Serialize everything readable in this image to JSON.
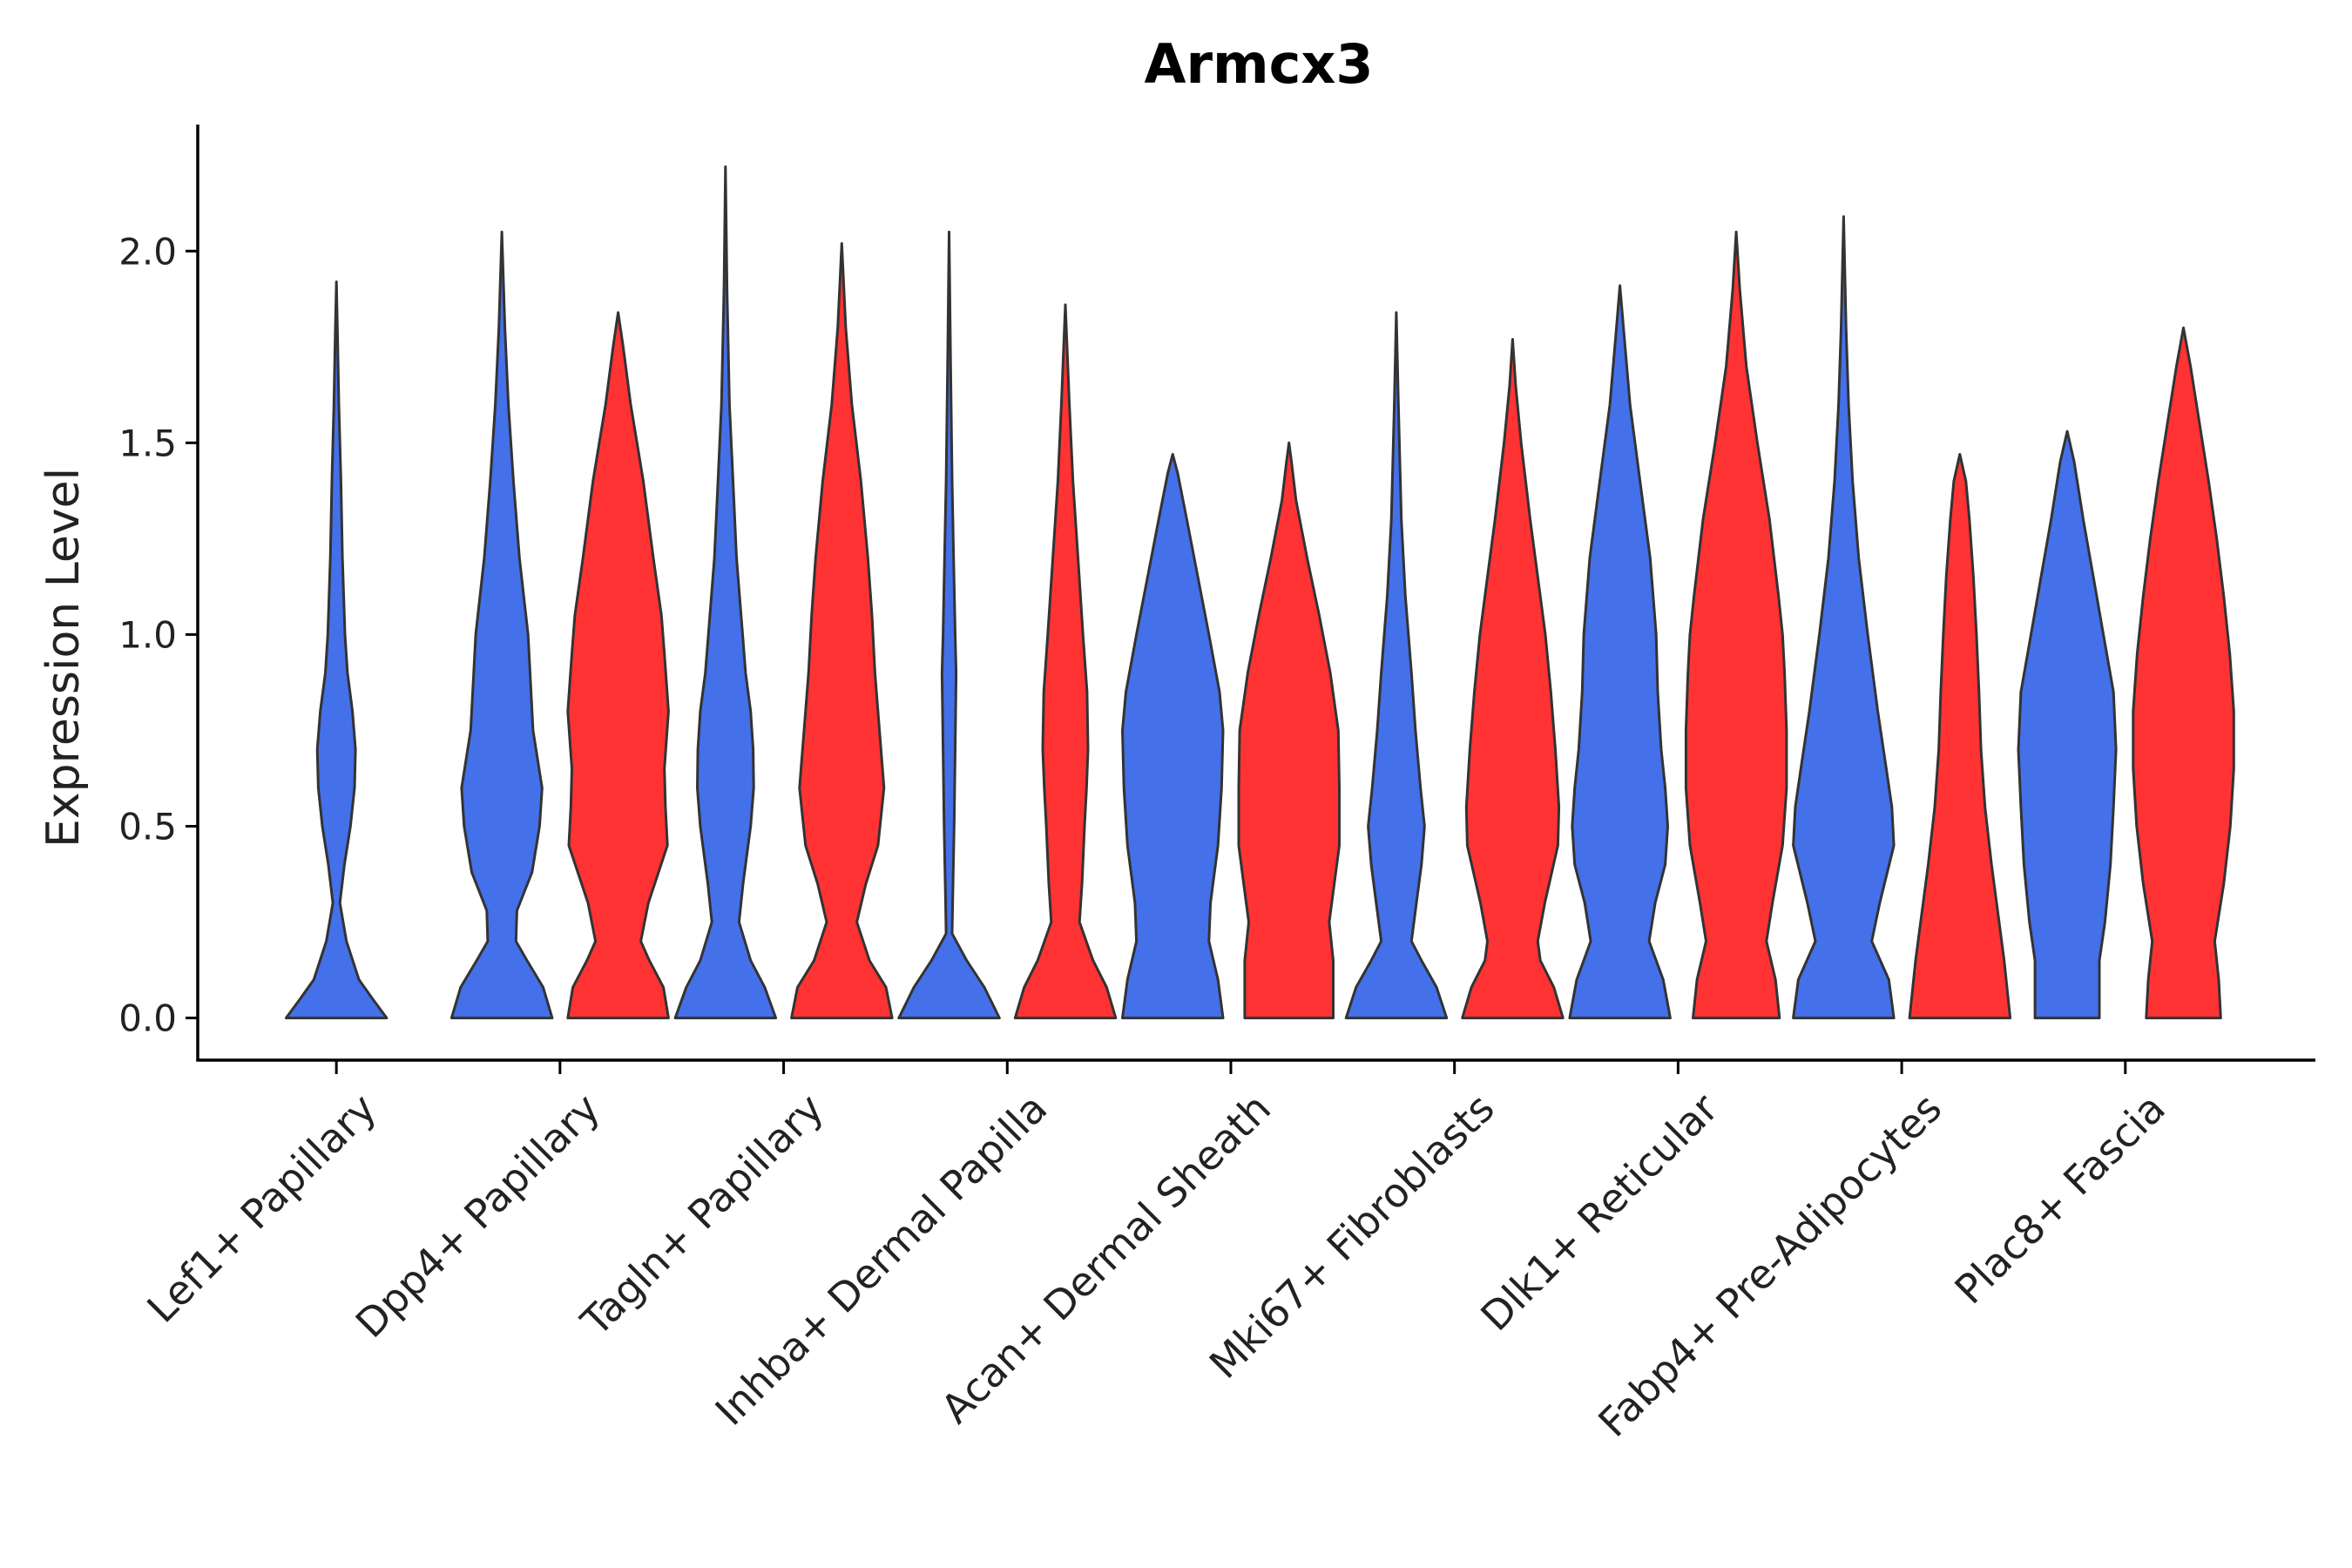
{
  "chart_data": {
    "type": "violin",
    "title": "Armcx3",
    "xlabel": "",
    "ylabel": "Expression Level",
    "ylim": [
      -0.11,
      2.33
    ],
    "yticks": [
      0.0,
      0.5,
      1.0,
      1.5,
      2.0
    ],
    "ytick_labels": [
      "0.0",
      "0.5",
      "1.0",
      "1.5",
      "2.0"
    ],
    "grid": false,
    "legend": "none",
    "colors": {
      "blue": "#4470EA",
      "red": "#FF3333",
      "outline": "#333333"
    },
    "categories": [
      "Lef1+ Papillary",
      "Dpp4+ Papillary",
      "Tagln+ Papillary",
      "Inhba+ Dermal Papilla",
      "Acan+ Dermal Sheath",
      "Mki67+ Fibroblasts",
      "Dlk1+ Reticular",
      "Fabp4+ Pre-Adipocytes",
      "Plac8+ Fascia"
    ],
    "violins": [
      {
        "category": 0,
        "color": "blue",
        "max": 1.92,
        "profile": [
          [
            0.0,
            1.0
          ],
          [
            0.05,
            0.72
          ],
          [
            0.1,
            0.45
          ],
          [
            0.2,
            0.2
          ],
          [
            0.3,
            0.07
          ],
          [
            0.4,
            0.16
          ],
          [
            0.5,
            0.28
          ],
          [
            0.6,
            0.36
          ],
          [
            0.7,
            0.38
          ],
          [
            0.8,
            0.32
          ],
          [
            0.9,
            0.22
          ],
          [
            1.0,
            0.17
          ],
          [
            1.2,
            0.12
          ],
          [
            1.4,
            0.09
          ],
          [
            1.6,
            0.05
          ],
          [
            1.8,
            0.02
          ],
          [
            1.92,
            0.0
          ]
        ]
      },
      {
        "category": 1,
        "color": "blue",
        "max": 2.05,
        "profile": [
          [
            0.0,
            1.0
          ],
          [
            0.08,
            0.82
          ],
          [
            0.15,
            0.5
          ],
          [
            0.2,
            0.28
          ],
          [
            0.28,
            0.3
          ],
          [
            0.38,
            0.6
          ],
          [
            0.5,
            0.75
          ],
          [
            0.6,
            0.8
          ],
          [
            0.75,
            0.62
          ],
          [
            0.9,
            0.56
          ],
          [
            1.0,
            0.52
          ],
          [
            1.2,
            0.35
          ],
          [
            1.4,
            0.23
          ],
          [
            1.6,
            0.13
          ],
          [
            1.8,
            0.06
          ],
          [
            2.05,
            0.0
          ]
        ]
      },
      {
        "category": 1,
        "color": "red",
        "max": 1.84,
        "profile": [
          [
            0.0,
            1.0
          ],
          [
            0.08,
            0.9
          ],
          [
            0.15,
            0.62
          ],
          [
            0.2,
            0.45
          ],
          [
            0.3,
            0.6
          ],
          [
            0.45,
            0.98
          ],
          [
            0.55,
            0.94
          ],
          [
            0.65,
            0.92
          ],
          [
            0.8,
            1.0
          ],
          [
            0.95,
            0.92
          ],
          [
            1.05,
            0.86
          ],
          [
            1.2,
            0.7
          ],
          [
            1.4,
            0.5
          ],
          [
            1.6,
            0.25
          ],
          [
            1.75,
            0.1
          ],
          [
            1.84,
            0.0
          ]
        ]
      },
      {
        "category": 2,
        "color": "blue",
        "max": 2.22,
        "profile": [
          [
            0.0,
            1.0
          ],
          [
            0.08,
            0.78
          ],
          [
            0.15,
            0.5
          ],
          [
            0.25,
            0.27
          ],
          [
            0.35,
            0.35
          ],
          [
            0.5,
            0.5
          ],
          [
            0.6,
            0.56
          ],
          [
            0.7,
            0.55
          ],
          [
            0.8,
            0.5
          ],
          [
            0.9,
            0.4
          ],
          [
            1.0,
            0.34
          ],
          [
            1.2,
            0.22
          ],
          [
            1.4,
            0.15
          ],
          [
            1.6,
            0.08
          ],
          [
            1.9,
            0.03
          ],
          [
            2.22,
            0.0
          ]
        ]
      },
      {
        "category": 2,
        "color": "red",
        "max": 2.02,
        "profile": [
          [
            0.0,
            1.0
          ],
          [
            0.08,
            0.88
          ],
          [
            0.15,
            0.55
          ],
          [
            0.25,
            0.3
          ],
          [
            0.35,
            0.48
          ],
          [
            0.45,
            0.72
          ],
          [
            0.6,
            0.84
          ],
          [
            0.75,
            0.75
          ],
          [
            0.9,
            0.66
          ],
          [
            1.05,
            0.6
          ],
          [
            1.2,
            0.52
          ],
          [
            1.4,
            0.38
          ],
          [
            1.6,
            0.2
          ],
          [
            1.8,
            0.08
          ],
          [
            2.02,
            0.0
          ]
        ]
      },
      {
        "category": 3,
        "color": "blue",
        "max": 2.05,
        "profile": [
          [
            0.0,
            1.0
          ],
          [
            0.08,
            0.7
          ],
          [
            0.15,
            0.35
          ],
          [
            0.22,
            0.06
          ],
          [
            0.3,
            0.07
          ],
          [
            0.5,
            0.1
          ],
          [
            0.7,
            0.12
          ],
          [
            0.9,
            0.14
          ],
          [
            1.0,
            0.12
          ],
          [
            1.2,
            0.09
          ],
          [
            1.4,
            0.06
          ],
          [
            1.7,
            0.03
          ],
          [
            2.05,
            0.0
          ]
        ]
      },
      {
        "category": 3,
        "color": "red",
        "max": 1.86,
        "profile": [
          [
            0.0,
            1.0
          ],
          [
            0.08,
            0.82
          ],
          [
            0.15,
            0.55
          ],
          [
            0.25,
            0.28
          ],
          [
            0.35,
            0.33
          ],
          [
            0.5,
            0.38
          ],
          [
            0.6,
            0.42
          ],
          [
            0.7,
            0.45
          ],
          [
            0.85,
            0.43
          ],
          [
            1.0,
            0.35
          ],
          [
            1.2,
            0.25
          ],
          [
            1.4,
            0.15
          ],
          [
            1.6,
            0.08
          ],
          [
            1.86,
            0.0
          ]
        ]
      },
      {
        "category": 4,
        "color": "blue",
        "max": 1.47,
        "profile": [
          [
            0.0,
            1.0
          ],
          [
            0.1,
            0.9
          ],
          [
            0.2,
            0.72
          ],
          [
            0.3,
            0.75
          ],
          [
            0.45,
            0.9
          ],
          [
            0.6,
            0.97
          ],
          [
            0.75,
            1.0
          ],
          [
            0.85,
            0.93
          ],
          [
            1.0,
            0.72
          ],
          [
            1.15,
            0.5
          ],
          [
            1.3,
            0.28
          ],
          [
            1.42,
            0.1
          ],
          [
            1.47,
            0.0
          ]
        ]
      },
      {
        "category": 4,
        "color": "red",
        "max": 1.5,
        "profile": [
          [
            0.0,
            0.88
          ],
          [
            0.15,
            0.88
          ],
          [
            0.25,
            0.8
          ],
          [
            0.35,
            0.9
          ],
          [
            0.45,
            1.0
          ],
          [
            0.6,
            1.0
          ],
          [
            0.75,
            0.98
          ],
          [
            0.9,
            0.82
          ],
          [
            1.05,
            0.6
          ],
          [
            1.2,
            0.36
          ],
          [
            1.35,
            0.14
          ],
          [
            1.45,
            0.05
          ],
          [
            1.5,
            0.0
          ]
        ]
      },
      {
        "category": 5,
        "color": "blue",
        "max": 1.84,
        "profile": [
          [
            0.0,
            1.0
          ],
          [
            0.08,
            0.8
          ],
          [
            0.15,
            0.5
          ],
          [
            0.2,
            0.3
          ],
          [
            0.3,
            0.4
          ],
          [
            0.4,
            0.5
          ],
          [
            0.5,
            0.56
          ],
          [
            0.6,
            0.48
          ],
          [
            0.75,
            0.38
          ],
          [
            0.9,
            0.3
          ],
          [
            1.1,
            0.18
          ],
          [
            1.3,
            0.1
          ],
          [
            1.6,
            0.04
          ],
          [
            1.84,
            0.0
          ]
        ]
      },
      {
        "category": 5,
        "color": "red",
        "max": 1.77,
        "profile": [
          [
            0.0,
            1.0
          ],
          [
            0.08,
            0.82
          ],
          [
            0.15,
            0.55
          ],
          [
            0.2,
            0.5
          ],
          [
            0.3,
            0.64
          ],
          [
            0.45,
            0.9
          ],
          [
            0.55,
            0.92
          ],
          [
            0.7,
            0.85
          ],
          [
            0.85,
            0.76
          ],
          [
            1.0,
            0.65
          ],
          [
            1.15,
            0.5
          ],
          [
            1.3,
            0.35
          ],
          [
            1.5,
            0.17
          ],
          [
            1.65,
            0.06
          ],
          [
            1.77,
            0.0
          ]
        ]
      },
      {
        "category": 6,
        "color": "blue",
        "max": 1.91,
        "profile": [
          [
            0.0,
            1.0
          ],
          [
            0.1,
            0.86
          ],
          [
            0.2,
            0.58
          ],
          [
            0.3,
            0.7
          ],
          [
            0.4,
            0.9
          ],
          [
            0.5,
            0.95
          ],
          [
            0.6,
            0.9
          ],
          [
            0.7,
            0.82
          ],
          [
            0.85,
            0.75
          ],
          [
            1.0,
            0.72
          ],
          [
            1.2,
            0.6
          ],
          [
            1.4,
            0.4
          ],
          [
            1.6,
            0.2
          ],
          [
            1.8,
            0.07
          ],
          [
            1.91,
            0.0
          ]
        ]
      },
      {
        "category": 6,
        "color": "red",
        "max": 2.05,
        "profile": [
          [
            0.0,
            0.86
          ],
          [
            0.1,
            0.78
          ],
          [
            0.2,
            0.6
          ],
          [
            0.3,
            0.72
          ],
          [
            0.45,
            0.92
          ],
          [
            0.6,
            1.0
          ],
          [
            0.75,
            1.0
          ],
          [
            0.9,
            0.96
          ],
          [
            1.0,
            0.92
          ],
          [
            1.1,
            0.84
          ],
          [
            1.3,
            0.66
          ],
          [
            1.5,
            0.42
          ],
          [
            1.7,
            0.2
          ],
          [
            1.9,
            0.07
          ],
          [
            2.05,
            0.0
          ]
        ]
      },
      {
        "category": 7,
        "color": "blue",
        "max": 2.09,
        "profile": [
          [
            0.0,
            1.0
          ],
          [
            0.1,
            0.9
          ],
          [
            0.2,
            0.56
          ],
          [
            0.3,
            0.72
          ],
          [
            0.45,
            1.0
          ],
          [
            0.55,
            0.96
          ],
          [
            0.65,
            0.85
          ],
          [
            0.8,
            0.68
          ],
          [
            1.0,
            0.48
          ],
          [
            1.2,
            0.3
          ],
          [
            1.4,
            0.18
          ],
          [
            1.6,
            0.1
          ],
          [
            1.8,
            0.05
          ],
          [
            2.09,
            0.0
          ]
        ]
      },
      {
        "category": 7,
        "color": "red",
        "max": 1.47,
        "profile": [
          [
            0.0,
            1.0
          ],
          [
            0.15,
            0.88
          ],
          [
            0.25,
            0.78
          ],
          [
            0.4,
            0.63
          ],
          [
            0.55,
            0.5
          ],
          [
            0.7,
            0.42
          ],
          [
            0.85,
            0.38
          ],
          [
            1.0,
            0.33
          ],
          [
            1.15,
            0.27
          ],
          [
            1.3,
            0.19
          ],
          [
            1.4,
            0.12
          ],
          [
            1.47,
            0.0
          ]
        ]
      },
      {
        "category": 8,
        "color": "blue",
        "max": 1.53,
        "profile": [
          [
            0.0,
            0.64
          ],
          [
            0.15,
            0.64
          ],
          [
            0.25,
            0.75
          ],
          [
            0.4,
            0.86
          ],
          [
            0.55,
            0.92
          ],
          [
            0.7,
            0.97
          ],
          [
            0.85,
            0.92
          ],
          [
            1.0,
            0.72
          ],
          [
            1.15,
            0.52
          ],
          [
            1.3,
            0.32
          ],
          [
            1.45,
            0.14
          ],
          [
            1.53,
            0.0
          ]
        ]
      },
      {
        "category": 8,
        "color": "red",
        "max": 1.8,
        "profile": [
          [
            0.0,
            0.74
          ],
          [
            0.1,
            0.7
          ],
          [
            0.2,
            0.62
          ],
          [
            0.35,
            0.8
          ],
          [
            0.5,
            0.93
          ],
          [
            0.65,
            1.0
          ],
          [
            0.8,
            1.0
          ],
          [
            0.95,
            0.92
          ],
          [
            1.1,
            0.8
          ],
          [
            1.25,
            0.66
          ],
          [
            1.4,
            0.5
          ],
          [
            1.55,
            0.32
          ],
          [
            1.7,
            0.14
          ],
          [
            1.8,
            0.0
          ]
        ]
      }
    ]
  }
}
